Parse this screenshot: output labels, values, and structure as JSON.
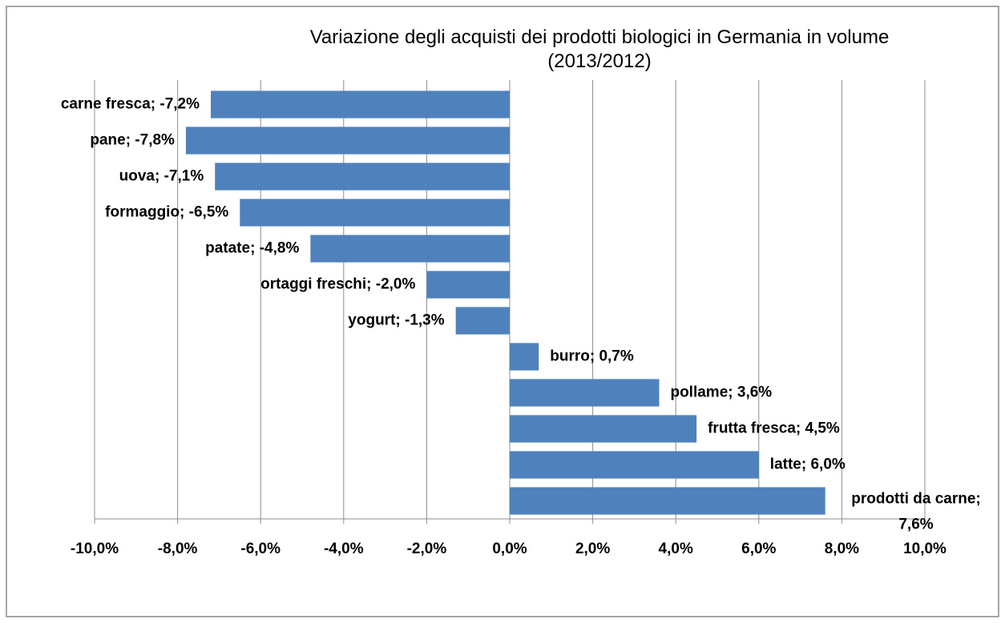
{
  "chart_data": {
    "type": "bar",
    "orientation": "horizontal",
    "title": "Variazione degli acquisti dei prodotti biologici in Germania in volume\n(2013/2012)",
    "values": [
      -7.2,
      -7.8,
      -7.1,
      -6.5,
      -4.8,
      -2.0,
      -1.3,
      0.7,
      3.6,
      4.5,
      6.0,
      7.6
    ],
    "value_labels": [
      "carne fresca; -7,2%",
      "pane; -7,8%",
      "uova; -7,1%",
      "formaggio; -6,5%",
      "patate; -4,8%",
      "ortaggi freschi; -2,0%",
      "yogurt; -1,3%",
      "burro; 0,7%",
      "pollame; 3,6%",
      "frutta fresca; 4,5%",
      "latte; 6,0%",
      "prodotti da carne;\n7,6%"
    ],
    "color": "#4f81bd",
    "xlim": [
      -10,
      10
    ],
    "xticks": [
      {
        "value": -10,
        "label": "-10,0%"
      },
      {
        "value": -8,
        "label": "-8,0%"
      },
      {
        "value": -6,
        "label": "-6,0%"
      },
      {
        "value": -4,
        "label": "-4,0%"
      },
      {
        "value": -2,
        "label": "-2,0%"
      },
      {
        "value": 0,
        "label": "0,0%"
      },
      {
        "value": 2,
        "label": "2,0%"
      },
      {
        "value": 4,
        "label": "4,0%"
      },
      {
        "value": 6,
        "label": "6,0%"
      },
      {
        "value": 8,
        "label": "8,0%"
      },
      {
        "value": 10,
        "label": "10,0%"
      }
    ],
    "grid": true
  }
}
